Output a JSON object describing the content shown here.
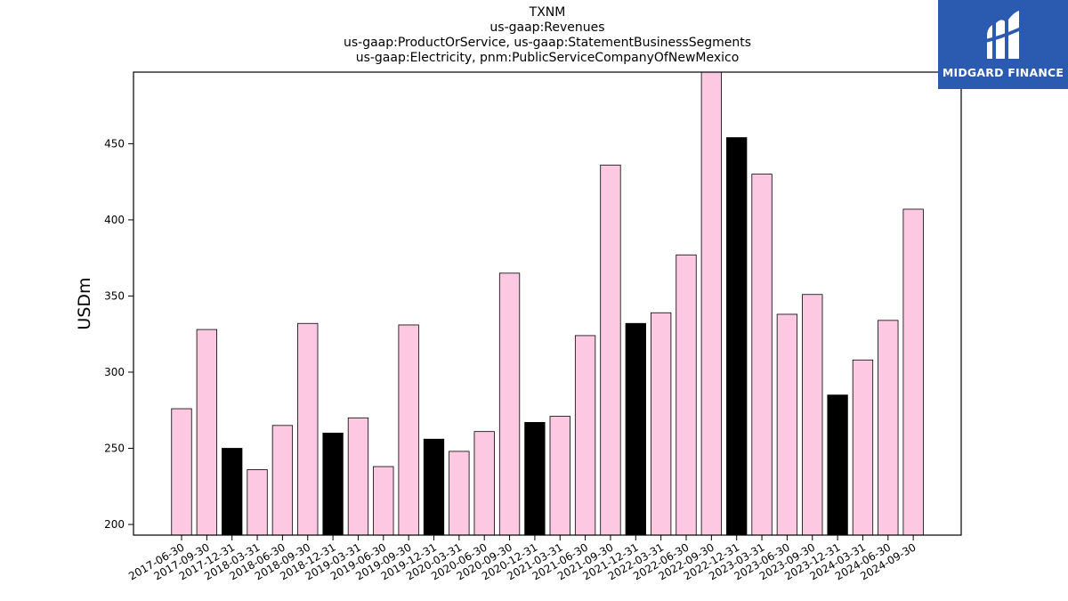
{
  "brand": {
    "name": "MIDGARD FINANCE",
    "color": "#2b5bb0"
  },
  "chart_data": {
    "type": "bar",
    "title_lines": [
      "TXNM",
      "us-gaap:Revenues",
      "us-gaap:ProductOrService, us-gaap:StatementBusinessSegments",
      "us-gaap:Electricity, pnm:PublicServiceCompanyOfNewMexico"
    ],
    "xlabel": "",
    "ylabel": "USDm",
    "ylim": [
      193,
      497
    ],
    "yticks": [
      200,
      250,
      300,
      350,
      400,
      450
    ],
    "colors": {
      "quarter": "#fcc8e2",
      "year_end": "#000000",
      "edge": "#000000"
    },
    "categories": [
      "2017-06-30",
      "2017-09-30",
      "2017-12-31",
      "2018-03-31",
      "2018-06-30",
      "2018-09-30",
      "2018-12-31",
      "2019-03-31",
      "2019-06-30",
      "2019-09-30",
      "2019-12-31",
      "2020-03-31",
      "2020-06-30",
      "2020-09-30",
      "2020-12-31",
      "2021-03-31",
      "2021-06-30",
      "2021-09-30",
      "2021-12-31",
      "2022-03-31",
      "2022-06-30",
      "2022-09-30",
      "2022-12-31",
      "2023-03-31",
      "2023-06-30",
      "2023-09-30",
      "2023-12-31",
      "2024-03-31",
      "2024-06-30",
      "2024-09-30"
    ],
    "values": [
      276,
      328,
      250,
      236,
      265,
      332,
      260,
      270,
      238,
      331,
      256,
      248,
      261,
      365,
      267,
      271,
      324,
      436,
      332,
      339,
      377,
      497,
      454,
      430,
      338,
      351,
      285,
      308,
      334,
      407
    ],
    "highlight": [
      false,
      false,
      true,
      false,
      false,
      false,
      true,
      false,
      false,
      false,
      true,
      false,
      false,
      false,
      true,
      false,
      false,
      false,
      true,
      false,
      false,
      false,
      true,
      false,
      false,
      false,
      true,
      false,
      false,
      false
    ]
  }
}
